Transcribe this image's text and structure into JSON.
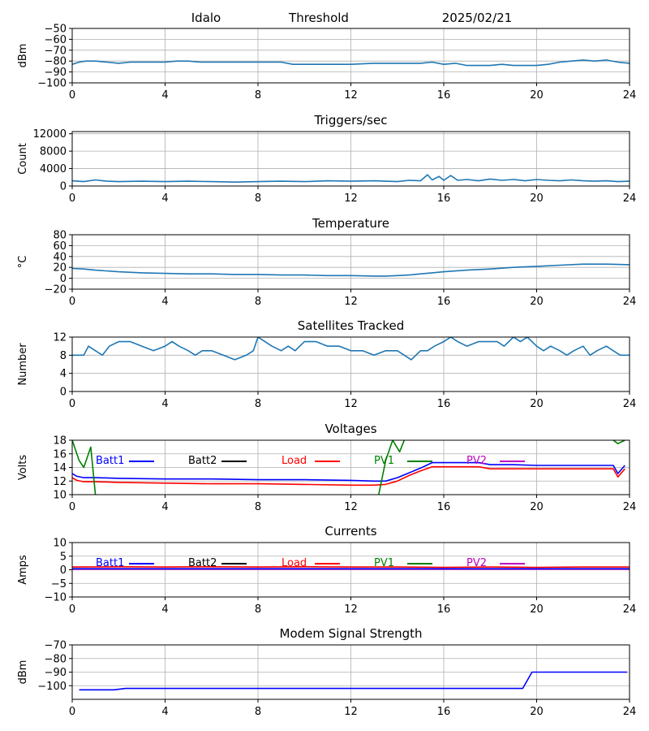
{
  "header": {
    "station": "Idalo",
    "title": "Threshold",
    "date": "2025/02/21"
  },
  "colors": {
    "default": "#1f77b4",
    "batt1": "#0000ff",
    "batt2": "#000000",
    "load": "#ff0000",
    "pv1": "#008000",
    "pv2": "#bf00bf"
  },
  "chart_data": [
    {
      "id": "threshold",
      "type": "line",
      "title": "",
      "ylabel": "dBm",
      "xlim": [
        0,
        24
      ],
      "ylim": [
        -100,
        -50
      ],
      "xticks": [
        0,
        4,
        8,
        12,
        16,
        20,
        24
      ],
      "yticks": [
        -100,
        -90,
        -80,
        -70,
        -60,
        -50
      ],
      "series": [
        {
          "color_key": "default",
          "x": [
            0,
            0.3,
            0.6,
            1,
            1.5,
            2,
            2.5,
            3,
            3.5,
            4,
            4.5,
            5,
            5.5,
            6,
            7,
            8,
            9,
            9.5,
            10,
            10.5,
            11,
            12,
            13,
            14,
            15,
            15.5,
            16,
            16.5,
            17,
            17.5,
            18,
            18.5,
            19,
            19.5,
            20,
            20.5,
            21,
            21.5,
            22,
            22.5,
            23,
            23.5,
            24
          ],
          "y": [
            -83,
            -81,
            -80,
            -80,
            -81,
            -82,
            -81,
            -81,
            -81,
            -81,
            -80,
            -80,
            -81,
            -81,
            -81,
            -81,
            -81,
            -83,
            -83,
            -83,
            -83,
            -83,
            -82,
            -82,
            -82,
            -81,
            -83,
            -82,
            -84,
            -84,
            -84,
            -83,
            -84,
            -84,
            -84,
            -83,
            -81,
            -80,
            -79,
            -80,
            -79,
            -81,
            -82
          ]
        }
      ]
    },
    {
      "id": "triggers",
      "type": "line",
      "title": "Triggers/sec",
      "ylabel": "Count",
      "xlim": [
        0,
        24
      ],
      "ylim": [
        0,
        12500
      ],
      "xticks": [
        0,
        4,
        8,
        12,
        16,
        20,
        24
      ],
      "yticks": [
        0,
        4000,
        8000,
        12000
      ],
      "series": [
        {
          "color_key": "default",
          "x": [
            0,
            0.5,
            1,
            1.5,
            2,
            3,
            4,
            5,
            6,
            7,
            8,
            9,
            10,
            11,
            12,
            13,
            14,
            14.5,
            15,
            15.3,
            15.5,
            15.8,
            16,
            16.3,
            16.6,
            17,
            17.5,
            18,
            18.5,
            19,
            19.5,
            20,
            20.5,
            21,
            21.5,
            22,
            22.5,
            23,
            23.5,
            24
          ],
          "y": [
            1200,
            1000,
            1400,
            1100,
            1000,
            1100,
            1000,
            1100,
            1000,
            900,
            1000,
            1100,
            1000,
            1200,
            1100,
            1200,
            1000,
            1300,
            1200,
            2600,
            1400,
            2200,
            1300,
            2400,
            1300,
            1500,
            1200,
            1600,
            1300,
            1500,
            1200,
            1500,
            1300,
            1200,
            1400,
            1200,
            1100,
            1200,
            1000,
            1100
          ]
        }
      ]
    },
    {
      "id": "temperature",
      "type": "line",
      "title": "Temperature",
      "ylabel": "°C",
      "xlim": [
        0,
        24
      ],
      "ylim": [
        -20,
        80
      ],
      "xticks": [
        0,
        4,
        8,
        12,
        16,
        20,
        24
      ],
      "yticks": [
        -20,
        0,
        20,
        40,
        60,
        80
      ],
      "series": [
        {
          "color_key": "default",
          "x": [
            0,
            0.5,
            1,
            2,
            3,
            4,
            5,
            6,
            7,
            8,
            9,
            10,
            11,
            12,
            13,
            13.5,
            14,
            14.5,
            15,
            15.5,
            16,
            17,
            18,
            19,
            20,
            21,
            22,
            22.5,
            23,
            24
          ],
          "y": [
            18,
            17,
            15,
            12,
            10,
            9,
            8,
            8,
            7,
            7,
            6,
            6,
            5,
            5,
            4,
            4,
            5,
            6,
            8,
            10,
            12,
            15,
            17,
            20,
            22,
            24,
            26,
            26,
            26,
            25
          ]
        }
      ]
    },
    {
      "id": "satellites",
      "type": "line",
      "title": "Satellites Tracked",
      "ylabel": "Number",
      "xlim": [
        0,
        24
      ],
      "ylim": [
        0,
        12
      ],
      "xticks": [
        0,
        4,
        8,
        12,
        16,
        20,
        24
      ],
      "yticks": [
        0,
        4,
        8,
        12
      ],
      "series": [
        {
          "color_key": "default",
          "x": [
            0,
            0.3,
            0.5,
            0.7,
            1,
            1.3,
            1.6,
            2,
            2.5,
            3,
            3.5,
            4,
            4.3,
            4.6,
            5,
            5.3,
            5.6,
            6,
            6.5,
            7,
            7.5,
            7.8,
            8,
            8.3,
            8.6,
            9,
            9.3,
            9.6,
            10,
            10.5,
            11,
            11.5,
            12,
            12.5,
            13,
            13.5,
            14,
            14.3,
            14.6,
            15,
            15.3,
            15.6,
            16,
            16.3,
            16.6,
            17,
            17.5,
            18,
            18.3,
            18.6,
            19,
            19.3,
            19.6,
            20,
            20.3,
            20.6,
            21,
            21.3,
            21.6,
            22,
            22.3,
            22.6,
            23,
            23.3,
            23.6,
            24
          ],
          "y": [
            8,
            8,
            8,
            10,
            9,
            8,
            10,
            11,
            11,
            10,
            9,
            10,
            11,
            10,
            9,
            8,
            9,
            9,
            8,
            7,
            8,
            9,
            12,
            11,
            10,
            9,
            10,
            9,
            11,
            11,
            10,
            10,
            9,
            9,
            8,
            9,
            9,
            8,
            7,
            9,
            9,
            10,
            11,
            12,
            11,
            10,
            11,
            11,
            11,
            10,
            12,
            11,
            12,
            10,
            9,
            10,
            9,
            8,
            9,
            10,
            8,
            9,
            10,
            9,
            8,
            8
          ]
        }
      ]
    },
    {
      "id": "voltages",
      "type": "line",
      "title": "Voltages",
      "ylabel": "Volts",
      "xlim": [
        0,
        24
      ],
      "ylim": [
        10,
        18
      ],
      "xticks": [
        0,
        4,
        8,
        12,
        16,
        20,
        24
      ],
      "yticks": [
        10,
        12,
        14,
        16,
        18
      ],
      "legend": [
        "Batt1",
        "Batt2",
        "Load",
        "PV1",
        "PV2"
      ],
      "series": [
        {
          "name": "Batt1",
          "color_key": "batt1",
          "x": [
            0,
            0.2,
            0.5,
            1,
            2,
            4,
            6,
            8,
            10,
            12,
            13,
            13.5,
            14,
            14.5,
            15,
            15.5,
            16,
            17,
            17.5,
            18,
            19,
            20,
            21,
            22,
            23,
            23.3,
            23.5,
            23.8
          ],
          "y": [
            13.1,
            12.7,
            12.5,
            12.5,
            12.4,
            12.3,
            12.3,
            12.2,
            12.2,
            12.1,
            12.0,
            12.0,
            12.5,
            13.2,
            13.9,
            14.7,
            14.7,
            14.7,
            14.7,
            14.4,
            14.4,
            14.3,
            14.3,
            14.3,
            14.3,
            14.3,
            13.1,
            14.3
          ]
        },
        {
          "name": "Load",
          "color_key": "load",
          "x": [
            0,
            0.2,
            0.5,
            1,
            2,
            4,
            6,
            8,
            10,
            12,
            13,
            13.5,
            14,
            14.5,
            15,
            15.5,
            16,
            17,
            17.5,
            18,
            19,
            20,
            21,
            22,
            23,
            23.3,
            23.5,
            23.8
          ],
          "y": [
            12.5,
            12.1,
            11.9,
            11.9,
            11.8,
            11.7,
            11.6,
            11.6,
            11.5,
            11.4,
            11.4,
            11.5,
            12.0,
            12.8,
            13.5,
            14.1,
            14.1,
            14.1,
            14.1,
            13.8,
            13.8,
            13.8,
            13.8,
            13.8,
            13.8,
            13.8,
            12.6,
            13.8
          ]
        },
        {
          "name": "PV1",
          "color_key": "pv1",
          "x": [
            0,
            0.3,
            0.5,
            0.8,
            1
          ],
          "y": [
            18,
            15,
            14,
            17,
            10
          ]
        },
        {
          "name": "PV1",
          "color_key": "pv1",
          "x": [
            13.2,
            13.5,
            13.8,
            14.1,
            14.3
          ],
          "y": [
            10,
            15,
            18,
            16.3,
            18
          ]
        },
        {
          "name": "PV1",
          "color_key": "pv1",
          "x": [
            23.3,
            23.5,
            23.8
          ],
          "y": [
            18,
            17.5,
            18
          ]
        }
      ]
    },
    {
      "id": "currents",
      "type": "line",
      "title": "Currents",
      "ylabel": "Amps",
      "xlim": [
        0,
        24
      ],
      "ylim": [
        -10,
        10
      ],
      "xticks": [
        0,
        4,
        8,
        12,
        16,
        20,
        24
      ],
      "yticks": [
        -10,
        -5,
        0,
        5,
        10
      ],
      "legend": [
        "Batt1",
        "Batt2",
        "Load",
        "PV1",
        "PV2"
      ],
      "series": [
        {
          "name": "PV2",
          "color_key": "pv2",
          "x": [
            0,
            24
          ],
          "y": [
            0.2,
            0.2
          ]
        },
        {
          "name": "Batt1",
          "color_key": "batt1",
          "x": [
            0,
            24
          ],
          "y": [
            0.4,
            0.4
          ]
        },
        {
          "name": "Load",
          "color_key": "load",
          "x": [
            0,
            2,
            4,
            6,
            8,
            10,
            12,
            14,
            16,
            18,
            20,
            22,
            24
          ],
          "y": [
            1.0,
            1.1,
            1.0,
            1.1,
            1.0,
            1.1,
            1.0,
            1.0,
            0.9,
            1.0,
            0.9,
            1.0,
            1.0
          ]
        }
      ]
    },
    {
      "id": "modem",
      "type": "line",
      "title": "Modem Signal Strength",
      "ylabel": "dBm",
      "xlim": [
        0,
        24
      ],
      "ylim": [
        -110,
        -70
      ],
      "xticks": [
        0,
        4,
        8,
        12,
        16,
        20,
        24
      ],
      "yticks": [
        -100,
        -90,
        -80,
        -70
      ],
      "series": [
        {
          "color_key": "batt1",
          "x": [
            0.3,
            1.8,
            2.3,
            19.4,
            19.8,
            23.9
          ],
          "y": [
            -103,
            -103,
            -102,
            -102,
            -90,
            -90
          ]
        }
      ]
    }
  ]
}
